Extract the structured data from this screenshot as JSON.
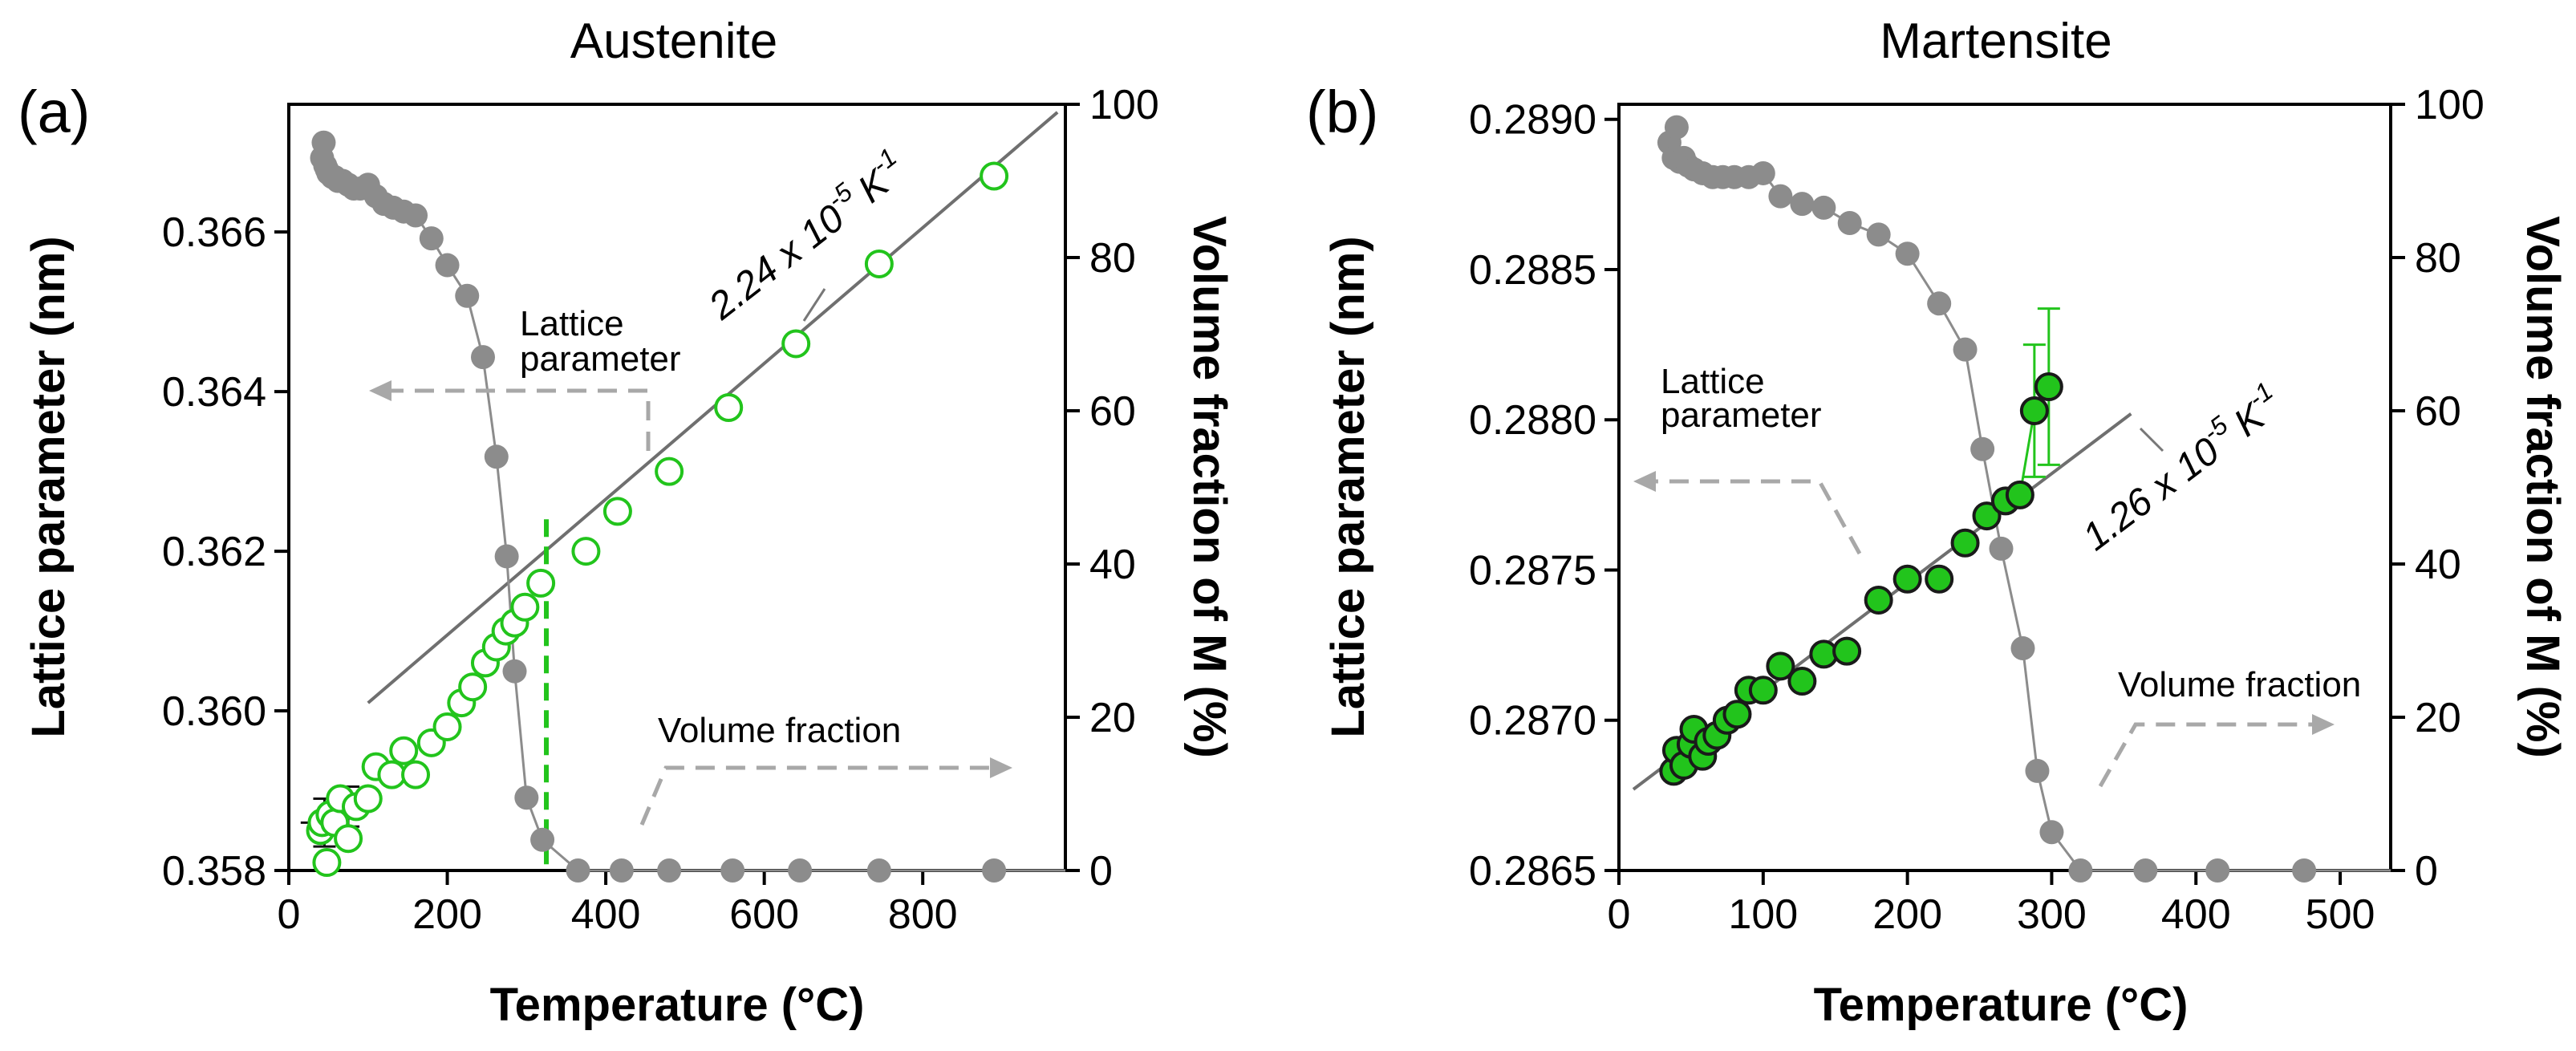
{
  "chart_data": [
    {
      "type": "scatter",
      "panel_label": "(a)",
      "title": "Austenite",
      "xlabel": "Temperature (°C)",
      "ylabel": "Lattice parameter (nm)",
      "y2label": "Volume fraction of M (%)",
      "xlim": [
        0,
        980
      ],
      "ylim": [
        0.358,
        0.3676
      ],
      "y2lim": [
        0,
        100
      ],
      "x_ticks": [
        0,
        200,
        400,
        600,
        800
      ],
      "y_ticks": [
        "0.358",
        "0.360",
        "0.362",
        "0.364",
        "0.366"
      ],
      "y2_ticks": [
        0,
        20,
        40,
        60,
        80,
        100
      ],
      "annotations": {
        "lattice_label_1": "Lattice",
        "lattice_label_2": "parameter",
        "volume_label": "Volume fraction",
        "slope_prefix": "2.24 x 10",
        "slope_exp": "-5",
        "slope_unit": "K",
        "slope_unit_exp": "-1"
      },
      "fit_line": {
        "x": [
          100,
          970
        ],
        "y": [
          0.3601,
          0.3675
        ]
      },
      "vertical_line_x": 325,
      "series": [
        {
          "name": "Lattice parameter",
          "color": "#22c41c",
          "marker": "open-circle",
          "x": [
            40,
            42,
            48,
            52,
            58,
            65,
            75,
            85,
            100,
            110,
            130,
            145,
            160,
            180,
            200,
            218,
            232,
            248,
            262,
            274,
            285,
            298,
            318,
            375,
            415,
            480,
            555,
            640,
            745,
            890
          ],
          "y": [
            0.3585,
            0.3586,
            0.3581,
            0.3587,
            0.3586,
            0.3589,
            0.3584,
            0.3588,
            0.3589,
            0.3593,
            0.3592,
            0.3595,
            0.3592,
            0.3596,
            0.3598,
            0.3601,
            0.3603,
            0.3606,
            0.3608,
            0.361,
            0.3611,
            0.3613,
            0.3616,
            0.362,
            0.3625,
            0.363,
            0.3638,
            0.3646,
            0.3656,
            0.3667
          ],
          "error_bars": [
            {
              "x": 45,
              "y": 0.3586,
              "xerr": 30,
              "yerr": 0.0003
            },
            {
              "x": 75,
              "y": 0.3588,
              "xerr": 30,
              "yerr": 0.00025
            }
          ]
        },
        {
          "name": "Volume fraction of M",
          "color": "#8c8c8c",
          "marker": "filled-circle",
          "axis": "right",
          "x": [
            42,
            44,
            46,
            48,
            50,
            55,
            58,
            62,
            68,
            75,
            82,
            90,
            100,
            110,
            120,
            132,
            145,
            160,
            180,
            200,
            225,
            245,
            262,
            275,
            285,
            300,
            320,
            365,
            420,
            480,
            560,
            645,
            745,
            890
          ],
          "y": [
            93,
            95,
            92,
            91.5,
            91,
            90.5,
            90.5,
            90,
            90,
            89.5,
            89,
            89,
            89.5,
            88,
            87,
            86.5,
            86,
            85.5,
            82.5,
            79,
            75,
            67,
            54,
            41,
            26,
            9.5,
            4,
            0,
            0,
            0,
            0,
            0,
            0,
            0
          ]
        }
      ]
    },
    {
      "type": "scatter",
      "panel_label": "(b)",
      "title": "Martensite",
      "xlabel": "Temperature (°C)",
      "ylabel": "Lattice parameter (nm)",
      "y2label": "Volume fraction of M (%)",
      "xlim": [
        0,
        535
      ],
      "ylim": [
        0.2865,
        0.28905
      ],
      "y2lim": [
        0,
        100
      ],
      "x_ticks": [
        0,
        100,
        200,
        300,
        400,
        500
      ],
      "y_ticks": [
        "0.2865",
        "0.2870",
        "0.2875",
        "0.2880",
        "0.2885",
        "0.2890"
      ],
      "y2_ticks": [
        0,
        20,
        40,
        60,
        80,
        100
      ],
      "annotations": {
        "lattice_label_1": "Lattice",
        "lattice_label_2": "parameter",
        "volume_label": "Volume fraction",
        "slope_prefix": "1.26 x 10",
        "slope_exp": "-5",
        "slope_unit": "K",
        "slope_unit_exp": "-1"
      },
      "fit_line": {
        "x": [
          10,
          355
        ],
        "y": [
          0.28677,
          0.28802
        ]
      },
      "series": [
        {
          "name": "Lattice parameter",
          "color": "#22c41c",
          "marker": "filled-circle",
          "x": [
            38,
            40,
            45,
            50,
            52,
            58,
            62,
            68,
            75,
            82,
            90,
            100,
            112,
            127,
            142,
            158,
            180,
            200,
            222,
            240,
            255,
            268,
            278,
            288,
            298
          ],
          "y": [
            0.28683,
            0.2869,
            0.28685,
            0.28692,
            0.28697,
            0.28688,
            0.28693,
            0.28695,
            0.287,
            0.28702,
            0.2871,
            0.2871,
            0.28718,
            0.28713,
            0.28722,
            0.28723,
            0.2874,
            0.28747,
            0.28747,
            0.28759,
            0.28768,
            0.28773,
            0.28775,
            0.28803,
            0.28811
          ],
          "error_bars": [
            {
              "x": 288,
              "y": 0.28803,
              "yerr": 0.00022
            },
            {
              "x": 298,
              "y": 0.28811,
              "yerr": 0.00026
            }
          ]
        },
        {
          "name": "Volume fraction of M",
          "color": "#8c8c8c",
          "marker": "filled-circle",
          "axis": "right",
          "x": [
            35,
            38,
            40,
            42,
            45,
            48,
            52,
            58,
            65,
            72,
            80,
            90,
            100,
            112,
            127,
            142,
            160,
            180,
            200,
            222,
            240,
            252,
            265,
            280,
            290,
            300,
            320,
            365,
            415,
            475
          ],
          "y": [
            95,
            93,
            97,
            92.5,
            93,
            92,
            91.5,
            91,
            90.5,
            90.5,
            90.5,
            90.5,
            91,
            88,
            87,
            86.5,
            84.5,
            83,
            80.5,
            74,
            68,
            55,
            42,
            29,
            13,
            5,
            0,
            0,
            0,
            0
          ]
        }
      ]
    }
  ]
}
